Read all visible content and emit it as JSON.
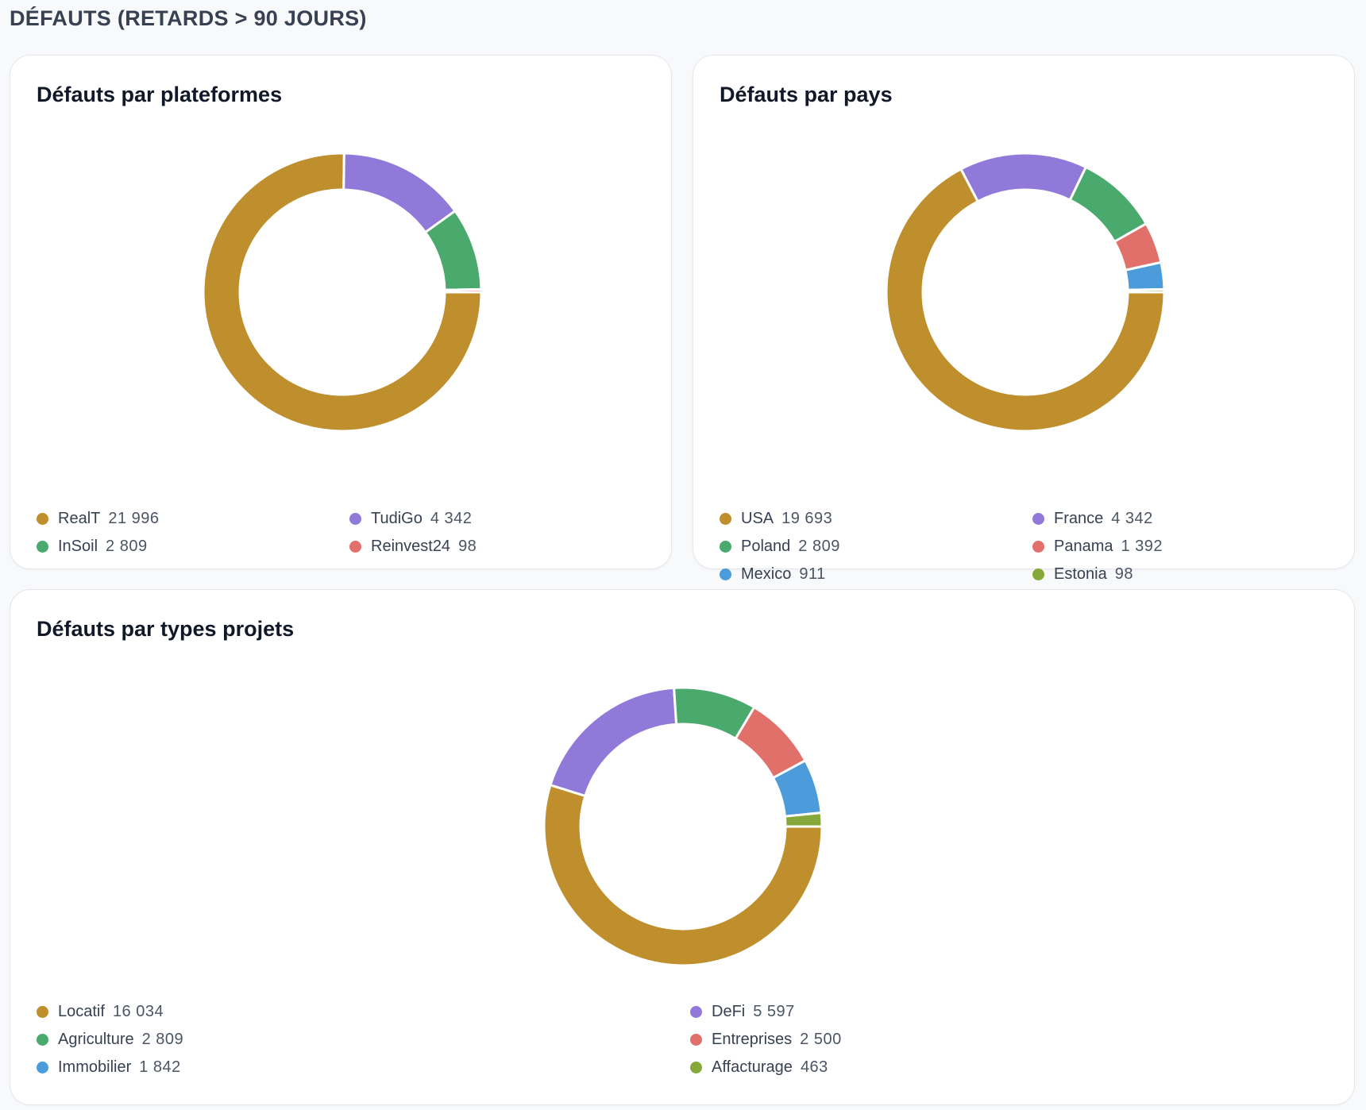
{
  "section_title": "DÉFAUTS (RETARDS > 90 JOURS)",
  "colors": {
    "gold": "#bf8f2e",
    "purple": "#9079d9",
    "green": "#4aa96c",
    "red": "#e2706a",
    "blue": "#4c9cdb",
    "olive": "#86a83a"
  },
  "chart_data": [
    {
      "type": "pie",
      "title": "Défauts par plateformes",
      "series": [
        {
          "name": "RealT",
          "value": 21996,
          "display": "21 996",
          "color": "#bf8f2e"
        },
        {
          "name": "TudiGo",
          "value": 4342,
          "display": "4 342",
          "color": "#9079d9"
        },
        {
          "name": "InSoil",
          "value": 2809,
          "display": "2 809",
          "color": "#4aa96c"
        },
        {
          "name": "Reinvest24",
          "value": 98,
          "display": "98",
          "color": "#e2706a"
        }
      ],
      "legend": "bottom"
    },
    {
      "type": "pie",
      "title": "Défauts par pays",
      "series": [
        {
          "name": "USA",
          "value": 19693,
          "display": "19 693",
          "color": "#bf8f2e"
        },
        {
          "name": "France",
          "value": 4342,
          "display": "4 342",
          "color": "#9079d9"
        },
        {
          "name": "Poland",
          "value": 2809,
          "display": "2 809",
          "color": "#4aa96c"
        },
        {
          "name": "Panama",
          "value": 1392,
          "display": "1 392",
          "color": "#e2706a"
        },
        {
          "name": "Mexico",
          "value": 911,
          "display": "911",
          "color": "#4c9cdb"
        },
        {
          "name": "Estonia",
          "value": 98,
          "display": "98",
          "color": "#86a83a"
        }
      ],
      "legend": "bottom"
    },
    {
      "type": "pie",
      "title": "Défauts par types projets",
      "series": [
        {
          "name": "Locatif",
          "value": 16034,
          "display": "16 034",
          "color": "#bf8f2e"
        },
        {
          "name": "DeFi",
          "value": 5597,
          "display": "5 597",
          "color": "#9079d9"
        },
        {
          "name": "Agriculture",
          "value": 2809,
          "display": "2 809",
          "color": "#4aa96c"
        },
        {
          "name": "Entreprises",
          "value": 2500,
          "display": "2 500",
          "color": "#e2706a"
        },
        {
          "name": "Immobilier",
          "value": 1842,
          "display": "1 842",
          "color": "#4c9cdb"
        },
        {
          "name": "Affacturage",
          "value": 463,
          "display": "463",
          "color": "#86a83a"
        }
      ],
      "legend": "bottom"
    }
  ]
}
